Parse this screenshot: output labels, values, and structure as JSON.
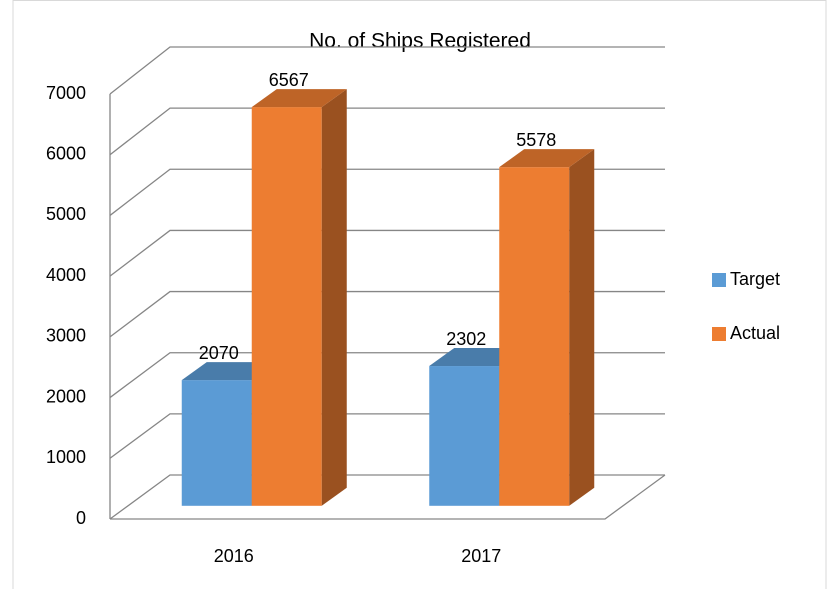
{
  "chart_data": {
    "type": "bar3d",
    "title": "No. of Ships Registered",
    "categories": [
      "2016",
      "2017"
    ],
    "series": [
      {
        "name": "Target",
        "color": "#5b9bd5",
        "values": [
          2070,
          2302
        ]
      },
      {
        "name": "Actual",
        "color": "#ed7d31",
        "values": [
          6567,
          5578
        ]
      }
    ],
    "ylim": [
      0,
      7000
    ],
    "yticks": [
      0,
      1000,
      2000,
      3000,
      4000,
      5000,
      6000,
      7000
    ],
    "grid": true,
    "legend": "right"
  }
}
